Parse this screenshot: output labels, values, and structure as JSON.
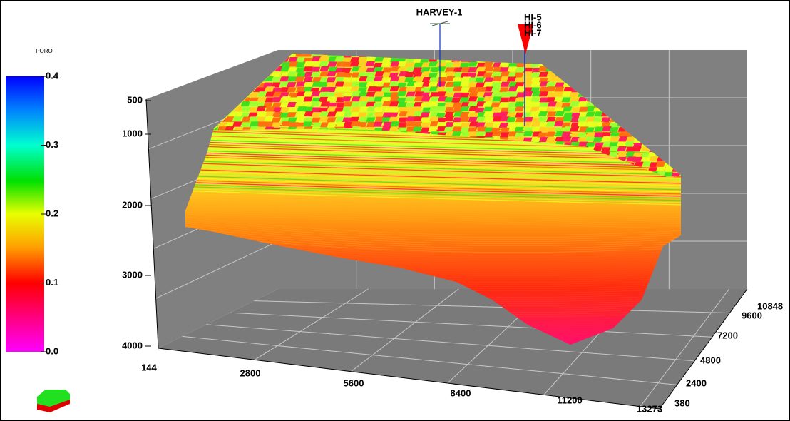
{
  "legend": {
    "title": "PORO",
    "ticks": [
      "0.4",
      "0.3",
      "0.2",
      "0.1",
      "0.0"
    ]
  },
  "axes": {
    "depth": [
      "500",
      "1000",
      "2000",
      "3000",
      "4000"
    ],
    "x": [
      "144",
      "2800",
      "5600",
      "8400",
      "11200",
      "13273"
    ],
    "y": [
      "380",
      "2400",
      "4800",
      "7200",
      "9600",
      "10848"
    ]
  },
  "wells": [
    "HARVEY-1",
    "HI-5",
    "HI-6",
    "HI-7"
  ]
}
